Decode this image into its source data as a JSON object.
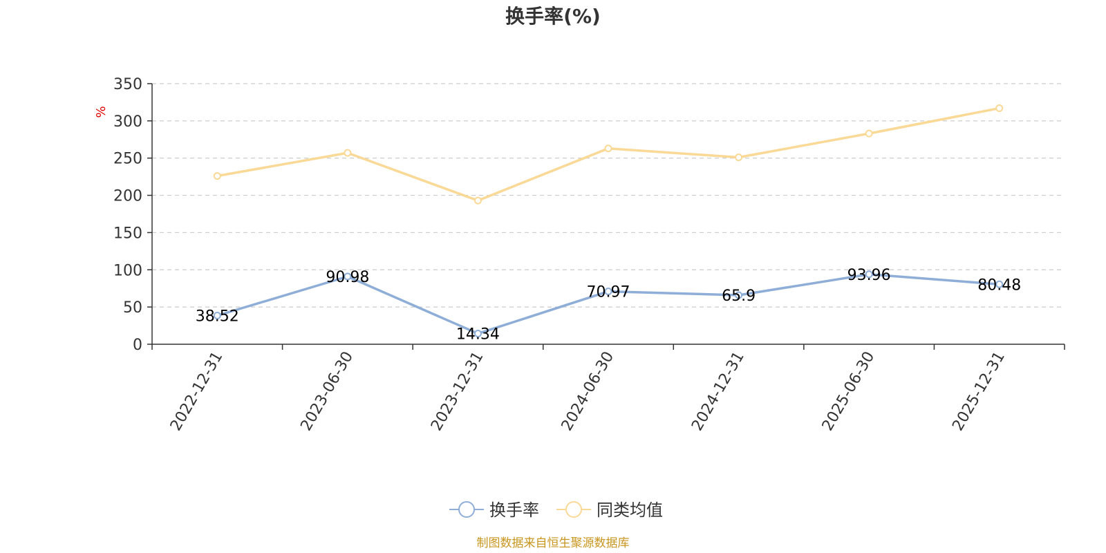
{
  "chart_data": {
    "type": "line",
    "title": "换手率(%)",
    "ylabel": "%",
    "xlabel": "",
    "ylim": [
      0,
      350
    ],
    "yticks": [
      0,
      50,
      100,
      150,
      200,
      250,
      300,
      350
    ],
    "grid": true,
    "legend_position": "bottom",
    "categories": [
      "2022-12-31",
      "2023-06-30",
      "2023-12-31",
      "2024-06-30",
      "2024-12-31",
      "2025-06-30",
      "2025-12-31"
    ],
    "series": [
      {
        "name": "换手率",
        "color": "#8eaed8",
        "values": [
          38.52,
          90.98,
          14.34,
          70.97,
          65.9,
          93.96,
          80.48
        ],
        "show_labels": true
      },
      {
        "name": "同类均值",
        "color": "#fad895",
        "values": [
          226,
          257,
          193,
          263,
          251,
          283,
          317
        ],
        "show_labels": false
      }
    ],
    "source": "制图数据来自恒生聚源数据库"
  }
}
